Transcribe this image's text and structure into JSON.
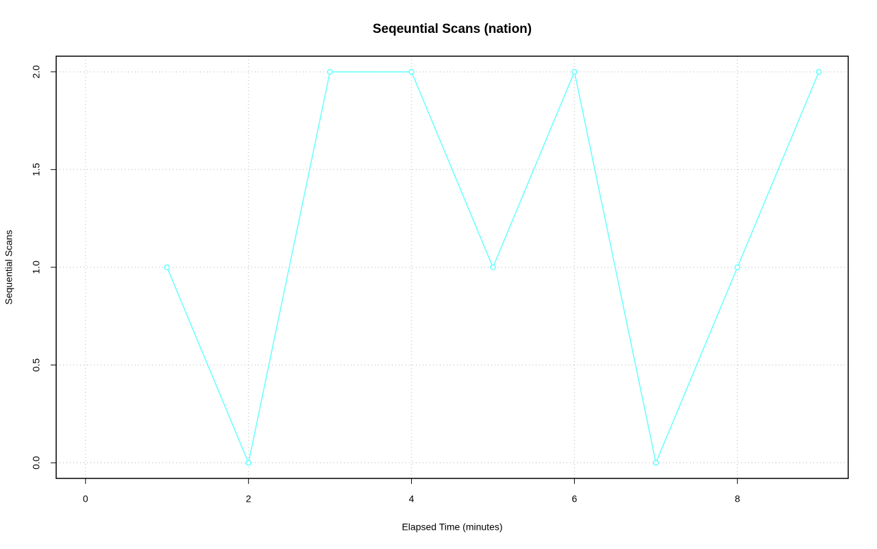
{
  "chart_data": {
    "type": "line",
    "title": "Seqeuntial Scans (nation)",
    "x_label": "Elapsed Time (minutes)",
    "y_label": "Sequential Scans",
    "x": [
      1,
      2,
      3,
      4,
      5,
      6,
      7,
      8,
      9
    ],
    "series": [
      {
        "name": "Sequential Scans",
        "color": "#66ffff",
        "values": [
          1,
          0,
          2,
          2,
          1,
          2,
          0,
          1,
          2
        ]
      }
    ],
    "xlim": [
      -0.36,
      9.36
    ],
    "ylim": [
      -0.08,
      2.08
    ],
    "xticks": [
      0,
      2,
      4,
      6,
      8
    ],
    "yticks": [
      {
        "value": 0,
        "label": "0.0"
      },
      0.5,
      {
        "value": 1,
        "label": "1.0"
      },
      1.5,
      {
        "value": 2,
        "label": "2.0"
      }
    ],
    "grid": true
  }
}
